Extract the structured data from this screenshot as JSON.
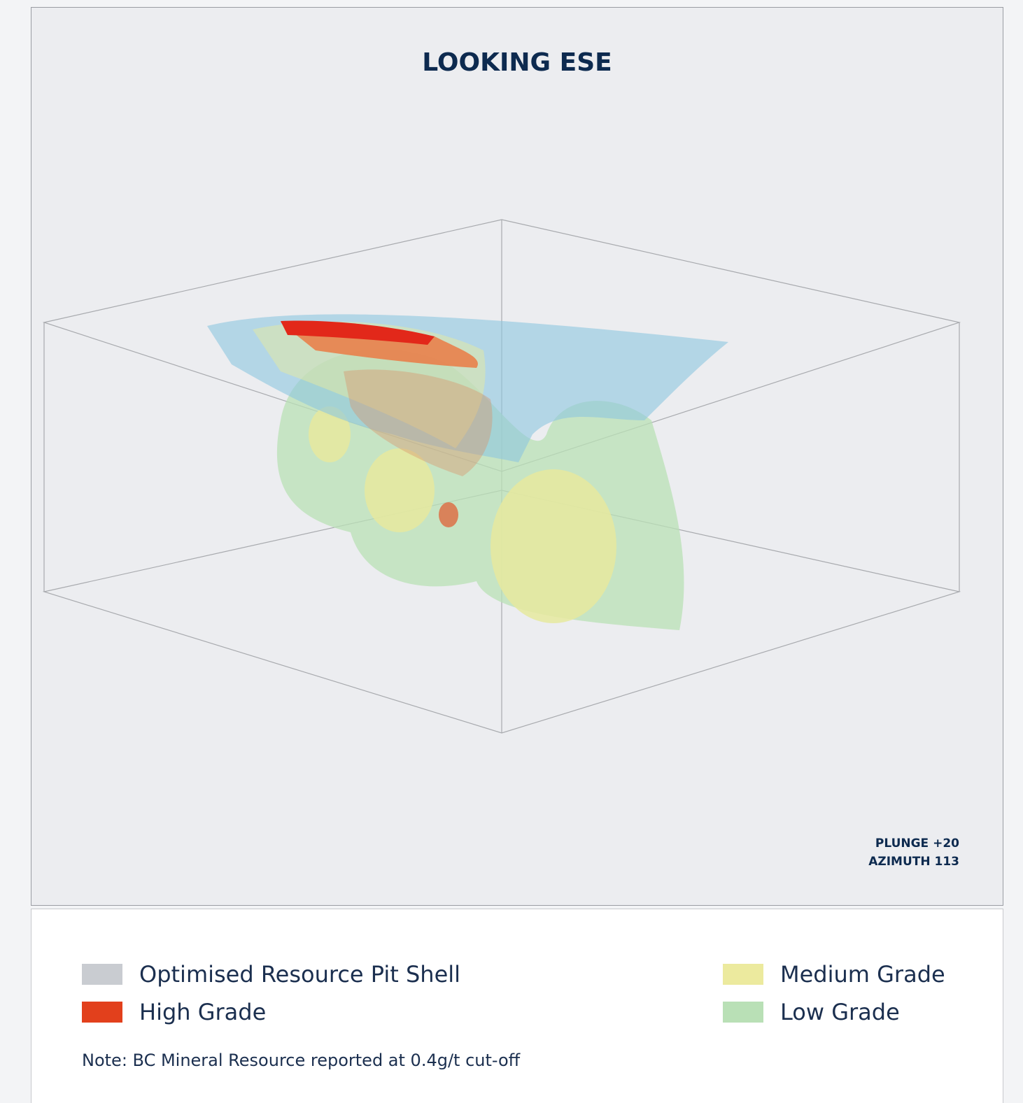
{
  "header": {
    "title": "LOOKING ESE"
  },
  "view": {
    "plunge": "PLUNGE +20",
    "azimuth": "AZIMUTH 113"
  },
  "legend": {
    "items": [
      {
        "label": "Optimised Resource Pit Shell",
        "color": "#c9ccd1"
      },
      {
        "label": "High Grade",
        "color": "#e2401c"
      },
      {
        "label": "Medium Grade",
        "color": "#ecea9e"
      },
      {
        "label": "Low Grade",
        "color": "#b9e0b6"
      }
    ],
    "note": "Note: BC Mineral Resource reported at 0.4g/t cut-off"
  }
}
